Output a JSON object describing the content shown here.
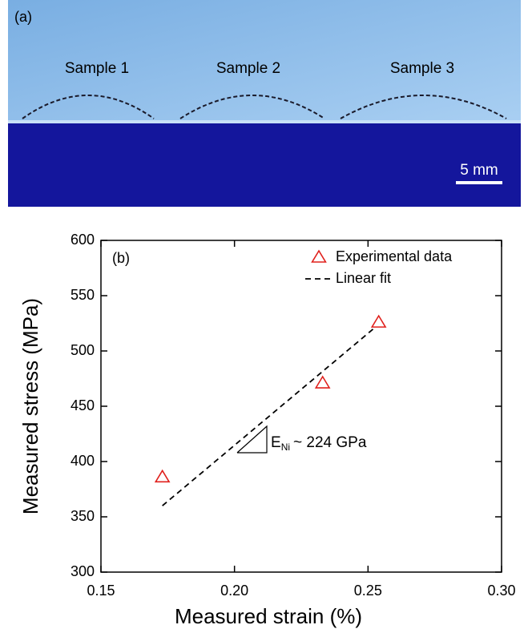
{
  "photo": {
    "panel_label": "(a)",
    "samples": [
      "Sample 1",
      "Sample 2",
      "Sample 3"
    ],
    "scale_bar": "5 mm"
  },
  "chart_data": {
    "type": "scatter",
    "panel_label": "(b)",
    "x_label": "Measured strain (%)",
    "y_label": "Measured stress (MPa)",
    "xlim": [
      0.15,
      0.3
    ],
    "xticks": [
      0.15,
      {
        "value": 0.2,
        "label": "0.20"
      },
      0.25,
      {
        "value": 0.3,
        "label": "0.30"
      }
    ],
    "ylim": [
      300,
      600
    ],
    "yticks": [
      300,
      350,
      400,
      450,
      500,
      550,
      600
    ],
    "series": [
      {
        "name": "Experimental data",
        "color": "#e0201c",
        "marker": "triangle",
        "x": [
          0.173,
          0.233,
          0.254
        ],
        "values": [
          386,
          471,
          526
        ]
      },
      {
        "name": "Linear fit",
        "color": "#000000",
        "linestyle": "dashed",
        "x": [
          0.173,
          0.253
        ],
        "values": [
          360,
          522
        ]
      }
    ],
    "legend": "upper right",
    "annotation": {
      "base": "E",
      "subscript": "Ni",
      "text": "~ 224 GPa"
    }
  }
}
